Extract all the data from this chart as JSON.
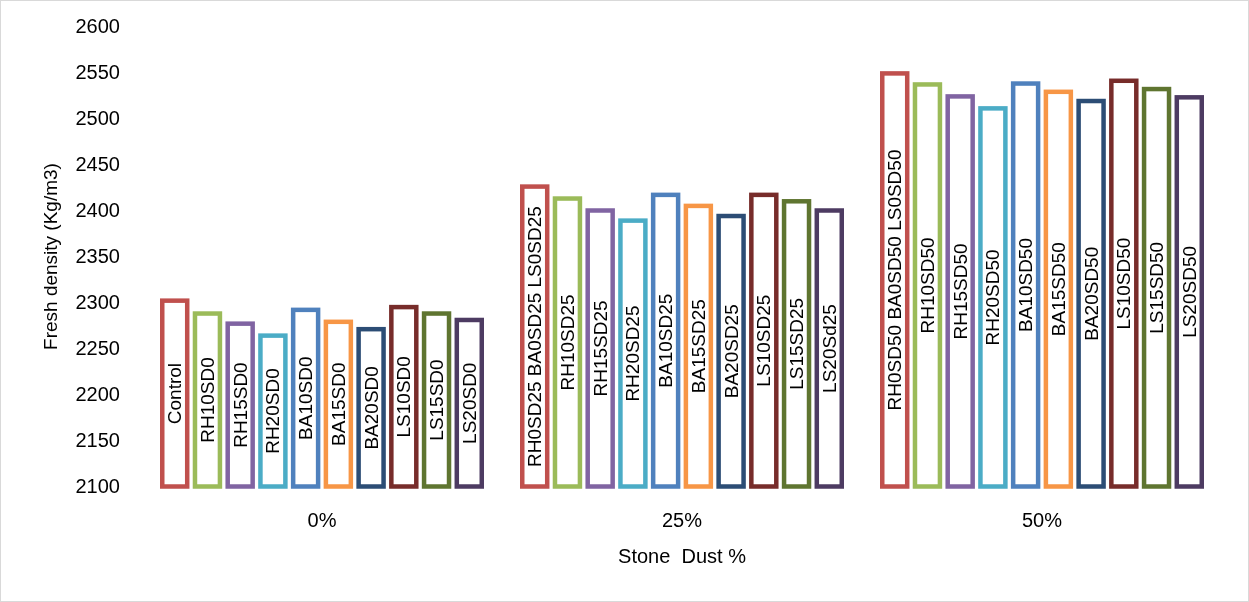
{
  "chart_data": {
    "type": "bar",
    "categories": [
      "0%",
      "25%",
      "50%"
    ],
    "xlabel": "Stone  Dust %",
    "ylabel": "Fresh density (Kg/m3)",
    "ylim": [
      2100,
      2600
    ],
    "yticks": [
      2100,
      2150,
      2200,
      2250,
      2300,
      2350,
      2400,
      2450,
      2500,
      2550,
      2600
    ],
    "series": [
      {
        "color": "#c0504d",
        "values": [
          2302,
          2426,
          2549
        ],
        "value_labels": [
          "Control",
          "RH0SD25 BA0SD25 LS0SD25",
          "RH0SD50 BA0SD50 LS0SD50"
        ]
      },
      {
        "color": "#9bbb59",
        "values": [
          2288,
          2413,
          2537
        ],
        "value_labels": [
          "RH10SD0",
          "RH10SD25",
          "RH10SD50"
        ]
      },
      {
        "color": "#8064a2",
        "values": [
          2277,
          2400,
          2524
        ],
        "value_labels": [
          "RH15SD0",
          "RH15SD25",
          "RH15SD50"
        ]
      },
      {
        "color": "#4bacc6",
        "values": [
          2264,
          2389,
          2511
        ],
        "value_labels": [
          "RH20SD0",
          "RH20SD25",
          "RH20SD50"
        ]
      },
      {
        "color": "#4f81bd",
        "values": [
          2292,
          2417,
          2538
        ],
        "value_labels": [
          "BA10SD0",
          "BA10SD25",
          "BA10SD50"
        ]
      },
      {
        "color": "#f79646",
        "values": [
          2279,
          2405,
          2529
        ],
        "value_labels": [
          "BA15SD0",
          "BA15SD25",
          "BA15SD50"
        ]
      },
      {
        "color": "#2c4d75",
        "values": [
          2271,
          2394,
          2519
        ],
        "value_labels": [
          "BA20SD0",
          "BA20SD25",
          "BA20SD50"
        ]
      },
      {
        "color": "#772c2a",
        "values": [
          2295,
          2417,
          2541
        ],
        "value_labels": [
          "LS10SD0",
          "LS10SD25",
          "LS10SD50"
        ]
      },
      {
        "color": "#5f7530",
        "values": [
          2288,
          2410,
          2532
        ],
        "value_labels": [
          "LS15SD0",
          "LS15SD25",
          "LS15SD50"
        ]
      },
      {
        "color": "#4d3b62",
        "values": [
          2281,
          2400,
          2523
        ],
        "value_labels": [
          "LS20SD0",
          "LS20Sd25",
          "LS20SD50"
        ]
      }
    ]
  }
}
